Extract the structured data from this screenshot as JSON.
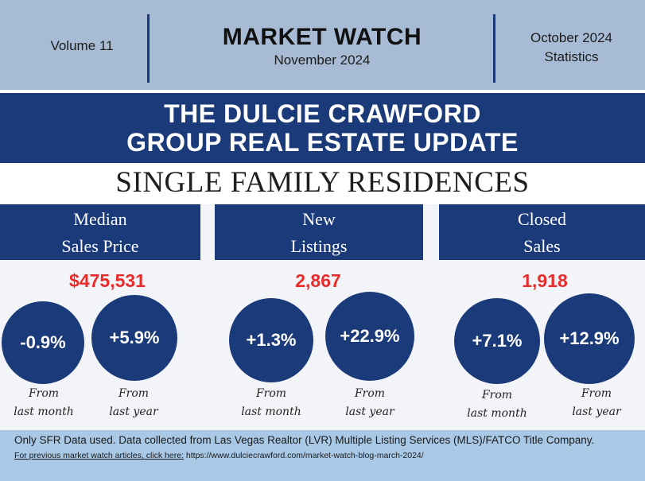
{
  "header": {
    "volume": "Volume 11",
    "title": "MARKET WATCH",
    "month": "November 2024",
    "stats_line1": "October 2024",
    "stats_line2": "Statistics"
  },
  "banner": {
    "line1": "THE DULCIE CRAWFORD",
    "line2": "GROUP REAL ESTATE UPDATE"
  },
  "subtitle": "SINGLE FAMILY RESIDENCES",
  "metrics": [
    {
      "label_line1": "Median",
      "label_line2": "Sales Price",
      "value": "$475,531",
      "month_change": "-0.9%",
      "year_change": "+5.9%"
    },
    {
      "label_line1": "New",
      "label_line2": "Listings",
      "value": "2,867",
      "month_change": "+1.3%",
      "year_change": "+22.9%"
    },
    {
      "label_line1": "Closed",
      "label_line2": "Sales",
      "value": "1,918",
      "month_change": "+7.1%",
      "year_change": "+12.9%"
    }
  ],
  "captions": {
    "from": "From",
    "last_month": "last month",
    "last_year": "last year"
  },
  "footer": {
    "note": "Only SFR Data used. Data collected from Las Vegas Realtor (LVR) Multiple Listing Services (MLS)/FATCO Title Company.",
    "link_label": "For previous market watch articles, click here:",
    "link_url": " https://www.dulciecrawford.com/market-watch-blog-march-2024/"
  },
  "colors": {
    "navy": "#1b3a7a",
    "header_bg": "#a7bcd4",
    "footer_bg": "#a9c8e6",
    "accent_red": "#e82b2b"
  }
}
